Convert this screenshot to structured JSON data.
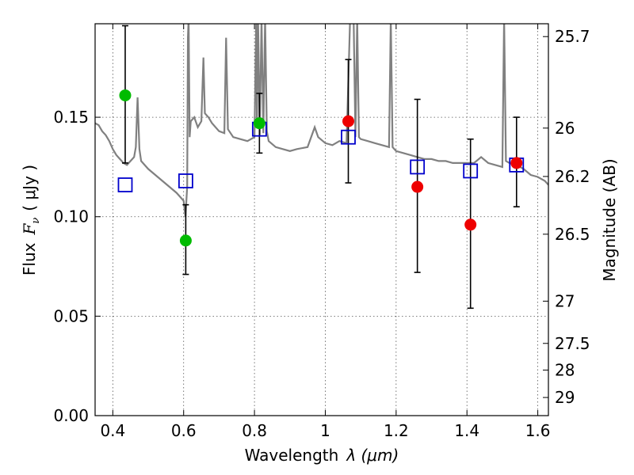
{
  "chart_data": {
    "type": "scatter",
    "xlabel_text": "Wavelength",
    "xlabel_math": "λ (μm)",
    "ylabel_text": "Flux",
    "ylabel_math": "F",
    "ylabel_sub": "ν",
    "ylabel_unit": "( μJy )",
    "y2label": "Magnitude (AB)",
    "xlim": [
      0.35,
      1.63
    ],
    "ylim": [
      0.0,
      0.197
    ],
    "grid": true,
    "x_ticks": [
      {
        "v": 0.4,
        "label": "0.4"
      },
      {
        "v": 0.6,
        "label": "0.6"
      },
      {
        "v": 0.8,
        "label": "0.8"
      },
      {
        "v": 1.0,
        "label": "1"
      },
      {
        "v": 1.2,
        "label": "1.2"
      },
      {
        "v": 1.4,
        "label": "1.4"
      },
      {
        "v": 1.6,
        "label": "1.6"
      }
    ],
    "y_ticks": [
      {
        "v": 0.0,
        "label": "0.00"
      },
      {
        "v": 0.05,
        "label": "0.05"
      },
      {
        "v": 0.1,
        "label": "0.10"
      },
      {
        "v": 0.15,
        "label": "0.15"
      }
    ],
    "mag_ticks": [
      {
        "mag": 25.7,
        "label": "25.7"
      },
      {
        "mag": 26,
        "label": "26"
      },
      {
        "mag": 26.2,
        "label": "26.2"
      },
      {
        "mag": 26.5,
        "label": "26.5"
      },
      {
        "mag": 27,
        "label": "27"
      },
      {
        "mag": 27.5,
        "label": "27.5"
      },
      {
        "mag": 28,
        "label": "28"
      },
      {
        "mag": 29,
        "label": "29"
      }
    ],
    "colors": {
      "model": "#808080",
      "optical": "#00bb00",
      "nir": "#ee0000",
      "model_phot": "#0000cc",
      "errbar": "#000000"
    },
    "observed_optical": [
      {
        "x": 0.435,
        "y": 0.161,
        "lo": 0.127,
        "hi": 0.196
      },
      {
        "x": 0.606,
        "y": 0.088,
        "lo": 0.071,
        "hi": 0.106
      },
      {
        "x": 0.814,
        "y": 0.147,
        "lo": 0.132,
        "hi": 0.162
      }
    ],
    "observed_nir": [
      {
        "x": 1.065,
        "y": 0.148,
        "lo": 0.117,
        "hi": 0.179
      },
      {
        "x": 1.26,
        "y": 0.115,
        "lo": 0.072,
        "hi": 0.159
      },
      {
        "x": 1.41,
        "y": 0.096,
        "lo": 0.054,
        "hi": 0.139
      },
      {
        "x": 1.54,
        "y": 0.127,
        "lo": 0.105,
        "hi": 0.15
      }
    ],
    "model_photometry": [
      {
        "x": 0.435,
        "y": 0.116
      },
      {
        "x": 0.606,
        "y": 0.118
      },
      {
        "x": 0.814,
        "y": 0.144
      },
      {
        "x": 1.065,
        "y": 0.14
      },
      {
        "x": 1.26,
        "y": 0.125
      },
      {
        "x": 1.41,
        "y": 0.123
      },
      {
        "x": 1.54,
        "y": 0.126
      }
    ],
    "model_spectrum": {
      "x": [
        0.35,
        0.36,
        0.37,
        0.38,
        0.39,
        0.4,
        0.41,
        0.42,
        0.43,
        0.44,
        0.45,
        0.46,
        0.465,
        0.47,
        0.475,
        0.48,
        0.5,
        0.52,
        0.54,
        0.56,
        0.58,
        0.6,
        0.605,
        0.61,
        0.612,
        0.614,
        0.617,
        0.62,
        0.63,
        0.64,
        0.65,
        0.656,
        0.66,
        0.67,
        0.68,
        0.7,
        0.715,
        0.72,
        0.725,
        0.74,
        0.76,
        0.78,
        0.8,
        0.805,
        0.807,
        0.81,
        0.815,
        0.82,
        0.825,
        0.83,
        0.835,
        0.84,
        0.86,
        0.88,
        0.9,
        0.92,
        0.95,
        0.97,
        0.98,
        1.0,
        1.02,
        1.04,
        1.06,
        1.07,
        1.08,
        1.085,
        1.09,
        1.095,
        1.1,
        1.12,
        1.14,
        1.16,
        1.18,
        1.185,
        1.19,
        1.2,
        1.22,
        1.24,
        1.26,
        1.28,
        1.3,
        1.32,
        1.34,
        1.36,
        1.38,
        1.4,
        1.42,
        1.44,
        1.46,
        1.48,
        1.5,
        1.505,
        1.51,
        1.52,
        1.54,
        1.56,
        1.58,
        1.6,
        1.62,
        1.63
      ],
      "y": [
        0.147,
        0.146,
        0.143,
        0.141,
        0.138,
        0.134,
        0.131,
        0.129,
        0.127,
        0.126,
        0.128,
        0.13,
        0.135,
        0.16,
        0.134,
        0.128,
        0.124,
        0.121,
        0.118,
        0.115,
        0.112,
        0.108,
        0.1,
        0.115,
        0.19,
        0.2,
        0.14,
        0.148,
        0.15,
        0.145,
        0.148,
        0.18,
        0.152,
        0.15,
        0.147,
        0.143,
        0.142,
        0.19,
        0.144,
        0.14,
        0.139,
        0.138,
        0.14,
        0.2,
        0.145,
        0.2,
        0.141,
        0.2,
        0.142,
        0.2,
        0.143,
        0.138,
        0.135,
        0.134,
        0.133,
        0.134,
        0.135,
        0.145,
        0.14,
        0.137,
        0.136,
        0.138,
        0.137,
        0.2,
        0.2,
        0.14,
        0.2,
        0.14,
        0.139,
        0.138,
        0.137,
        0.136,
        0.135,
        0.2,
        0.135,
        0.133,
        0.132,
        0.131,
        0.13,
        0.129,
        0.129,
        0.128,
        0.128,
        0.127,
        0.127,
        0.127,
        0.127,
        0.13,
        0.127,
        0.126,
        0.125,
        0.2,
        0.128,
        0.127,
        0.126,
        0.124,
        0.121,
        0.12,
        0.118,
        0.116
      ]
    }
  }
}
